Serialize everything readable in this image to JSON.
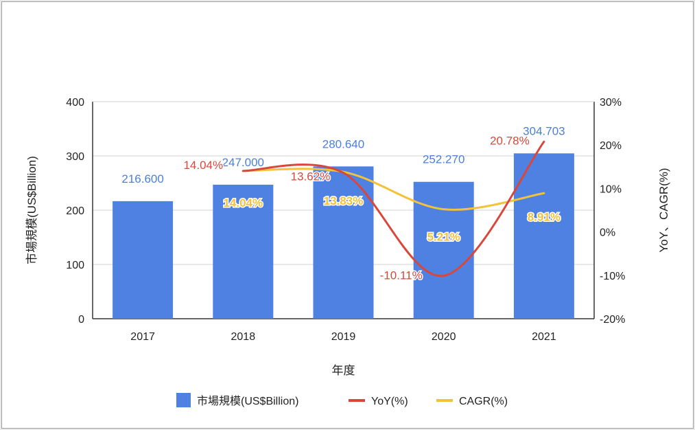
{
  "chart_data": {
    "type": "bar",
    "categories": [
      "2017",
      "2018",
      "2019",
      "2020",
      "2021"
    ],
    "xlabel": "年度",
    "ylabel": "市場規模(US$Billion)",
    "y2label": "YoY、CAGR(%)",
    "ylim": [
      0,
      400
    ],
    "y2lim": [
      -20,
      30
    ],
    "yticks": [
      "0",
      "100",
      "200",
      "300",
      "400"
    ],
    "y2ticks": [
      "-20%",
      "-10%",
      "0%",
      "10%",
      "20%",
      "30%"
    ],
    "grid": true,
    "legend_position": "bottom",
    "series": [
      {
        "name": "市場規模(US$Billion)",
        "type": "bar",
        "axis": "left",
        "color": "#4f81e3",
        "values": [
          216.6,
          247.0,
          280.64,
          252.27,
          304.703
        ],
        "labels": [
          "216.600",
          "247.000",
          "280.640",
          "252.270",
          "304.703"
        ]
      },
      {
        "name": "YoY(%)",
        "type": "line",
        "axis": "right",
        "color": "#d9473a",
        "values": [
          null,
          14.04,
          13.62,
          -10.11,
          20.78
        ],
        "labels": [
          "",
          "14.04%",
          "13.62%",
          "-10.11%",
          "20.78%"
        ]
      },
      {
        "name": "CAGR(%)",
        "type": "line",
        "axis": "right",
        "color": "#f2c23a",
        "values": [
          null,
          14.04,
          13.83,
          5.21,
          8.91
        ],
        "labels": [
          "",
          "14.04%",
          "13.83%",
          "5.21%",
          "8.91%"
        ]
      }
    ]
  }
}
